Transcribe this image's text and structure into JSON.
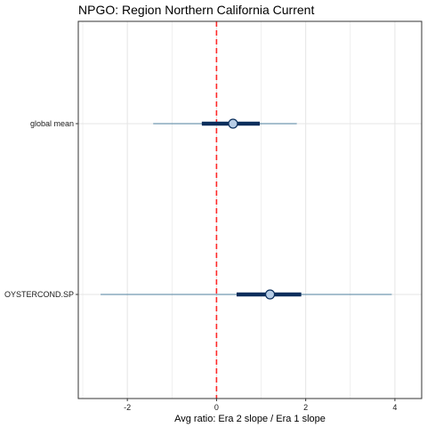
{
  "chart_data": {
    "type": "forest",
    "title": "NPGO: Region Northern California Current",
    "xlabel": "Avg ratio: Era 2 slope / Era 1 slope",
    "ylabel": "",
    "xlim": [
      -3.1,
      4.6
    ],
    "x_ticks": [
      -2,
      0,
      2,
      4
    ],
    "x_tick_labels": [
      "-2",
      "0",
      "2",
      "4"
    ],
    "x_minor_gridlines": [
      -3,
      -1,
      1,
      3
    ],
    "grid": true,
    "reference_line": {
      "x": 0,
      "style": "dashed",
      "color": "#ff2a2a"
    },
    "rows": [
      {
        "label": "global mean",
        "point": 0.37,
        "inner": [
          -0.33,
          0.97
        ],
        "outer": [
          -1.42,
          1.8
        ]
      },
      {
        "label": "OYSTERCOND.SP",
        "point": 1.2,
        "inner": [
          0.45,
          1.9
        ],
        "outer": [
          -2.6,
          3.93
        ]
      }
    ],
    "colors": {
      "outer_interval": "#4e7f9e",
      "inner_interval": "#0a2e5c",
      "point_fill": "#b7cde6",
      "point_stroke": "#0a2e5c",
      "grid": "#e5e5e5",
      "panel_border": "#333333"
    }
  }
}
